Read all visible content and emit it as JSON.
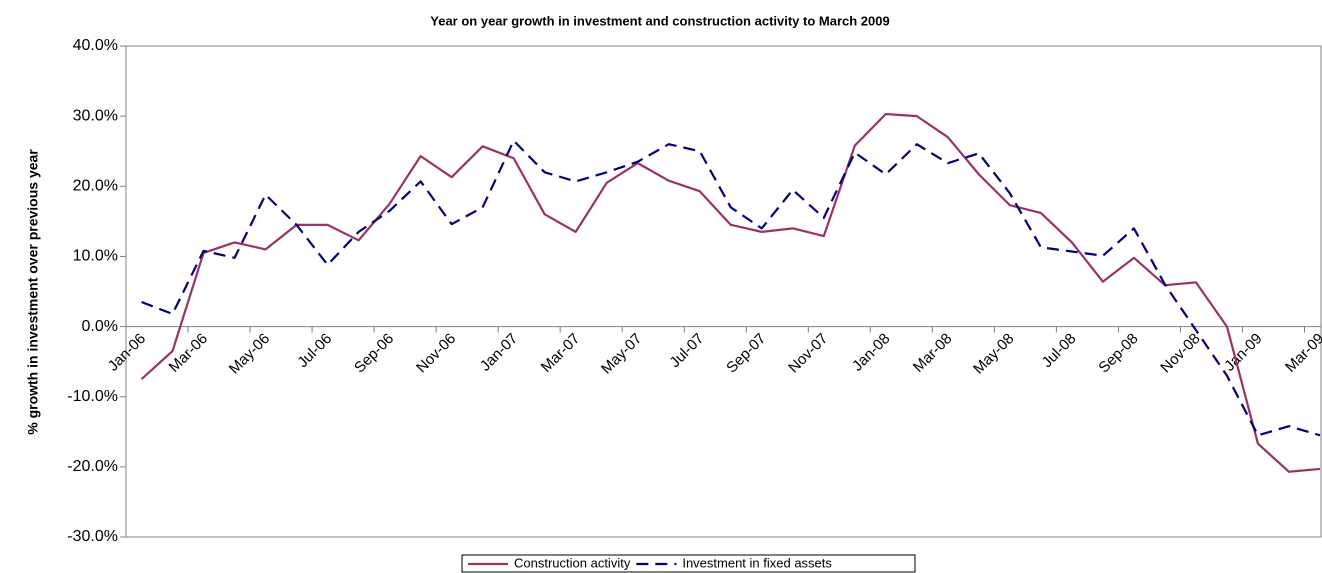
{
  "chart_data": {
    "type": "line",
    "title": "Year on year growth in investment and construction activity to March 2009",
    "y_label": "% growth in investment over previous year",
    "categories": [
      "Jan-06",
      null,
      "Mar-06",
      null,
      "May-06",
      null,
      "Jul-06",
      null,
      "Sep-06",
      null,
      "Nov-06",
      null,
      "Jan-07",
      null,
      "Mar-07",
      null,
      "May-07",
      null,
      "Jul-07",
      null,
      "Sep-07",
      null,
      "Nov-07",
      null,
      "Jan-08",
      null,
      "Mar-08",
      null,
      "May-08",
      null,
      "Jul-08",
      null,
      "Sep-08",
      null,
      "Nov-08",
      null,
      "Jan-09",
      null,
      "Mar-09"
    ],
    "series": [
      {
        "name": "Construction activity",
        "color": "#993366",
        "dash": "solid",
        "values": [
          -7.5,
          -3.5,
          10.5,
          12,
          11,
          14.5,
          14.5,
          12.3,
          17.5,
          24.3,
          21.3,
          25.7,
          24,
          16,
          13.5,
          20.5,
          23.3,
          20.8,
          19.3,
          14.5,
          13.5,
          14,
          12.9,
          25.8,
          30.3,
          30,
          27,
          21.7,
          17.3,
          16.2,
          12,
          6.4,
          9.8,
          5.9,
          6.3,
          0,
          -16.7,
          -20.7,
          -20.3
        ]
      },
      {
        "name": "Investment in fixed assets",
        "color": "#000080",
        "dash": "dashed",
        "values": [
          3.5,
          1.8,
          10.8,
          9.8,
          18.8,
          14.5,
          8.8,
          13.5,
          16.5,
          20.7,
          14.6,
          17,
          26.5,
          22,
          20.7,
          22,
          23.5,
          26,
          25,
          17,
          14,
          19.5,
          15.5,
          24.8,
          21.7,
          26,
          23.3,
          24.7,
          19,
          11.3,
          10.7,
          10.1,
          14,
          6,
          -0.5,
          -7,
          -15.5,
          -14.2,
          -15.5
        ]
      }
    ],
    "ylim": [
      -30,
      40
    ],
    "yticks": [
      {
        "value": -30,
        "label": "-30.0%"
      },
      {
        "value": -20,
        "label": "-20.0%"
      },
      {
        "value": -10,
        "label": "-10.0%"
      },
      {
        "value": 0,
        "label": "0.0%"
      },
      {
        "value": 10,
        "label": "10.0%"
      },
      {
        "value": 20,
        "label": "20.0%"
      },
      {
        "value": 30,
        "label": "30.0%"
      },
      {
        "value": 40,
        "label": "40.0%"
      }
    ],
    "grid": false,
    "legend": "bottom"
  }
}
